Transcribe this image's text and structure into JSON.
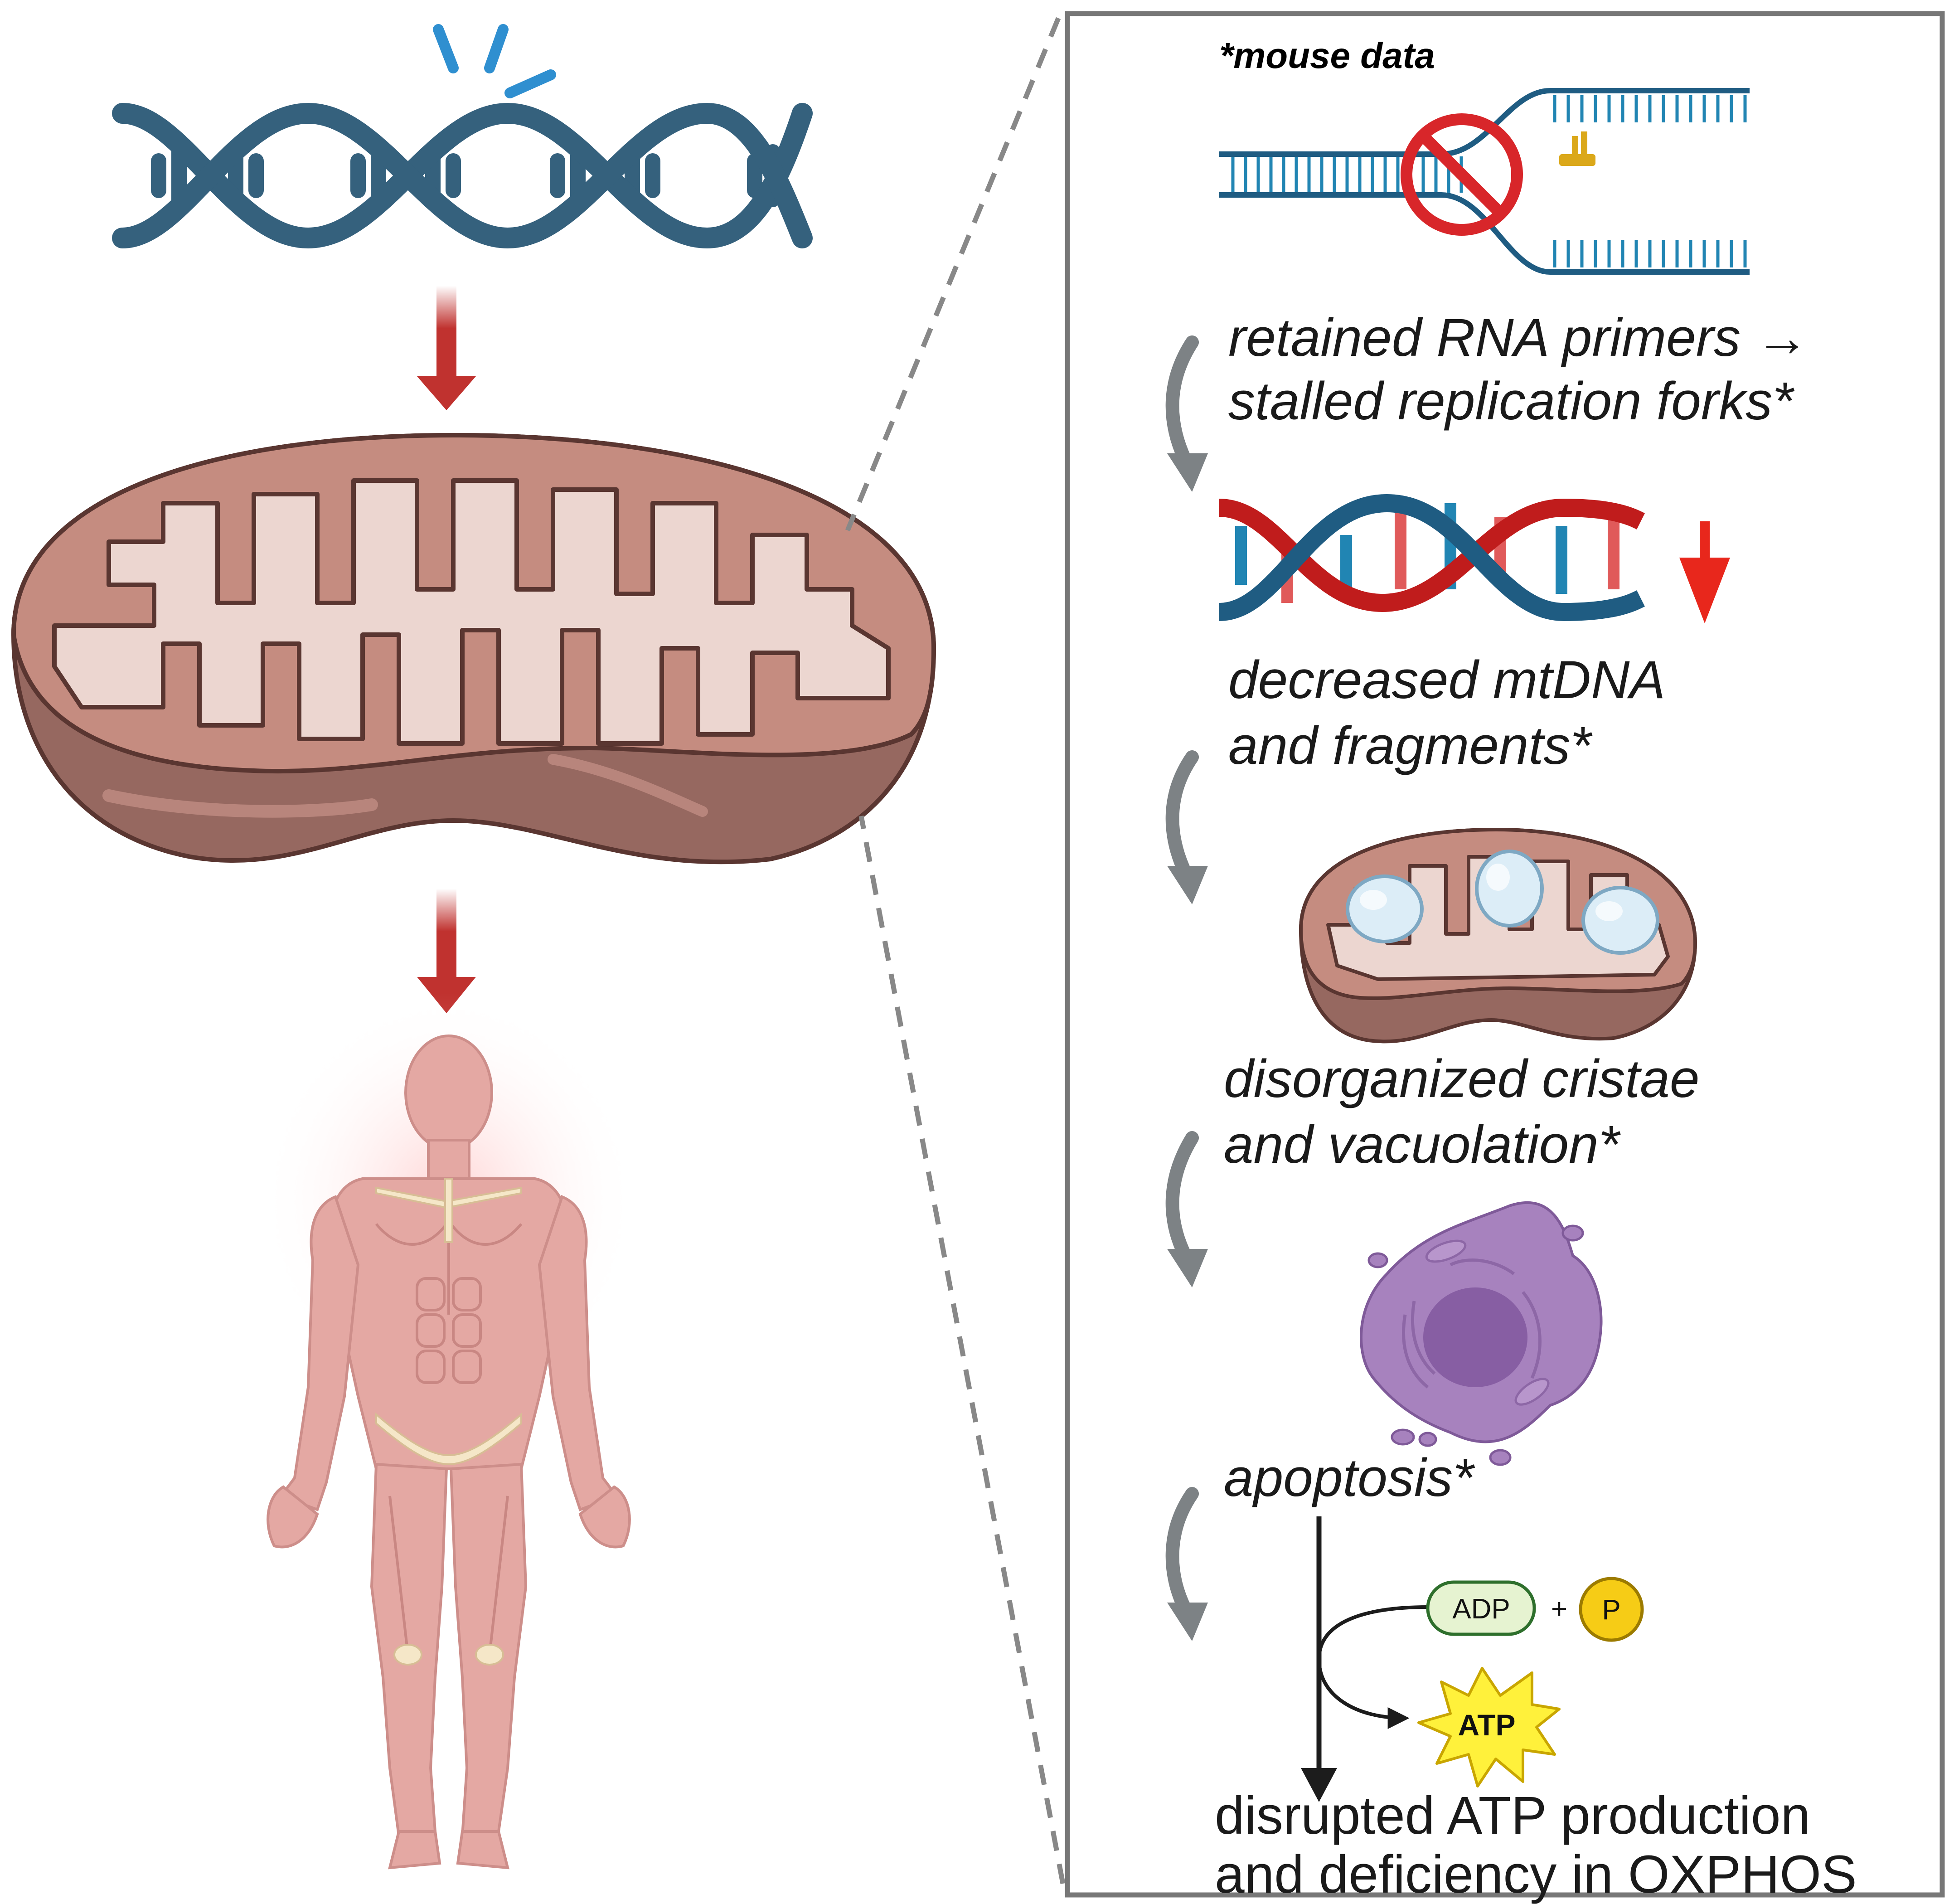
{
  "figure": {
    "mouse_note": "*mouse data",
    "steps": [
      {
        "id": "primers",
        "line1": "retained RNA primers →",
        "line2": "stalled replication forks*"
      },
      {
        "id": "mtdna",
        "line1": "decreased mtDNA",
        "line2": "and fragments*"
      },
      {
        "id": "cristae",
        "line1": "disorganized cristae",
        "line2": "and vacuolation*"
      },
      {
        "id": "apoptosis",
        "line1": "apoptosis*"
      },
      {
        "id": "atp",
        "line1": "disrupted ATP production",
        "line2": "and deficiency in OXPHOS"
      }
    ],
    "reaction": {
      "adp": "ADP",
      "plus": "+",
      "phosphate": "P",
      "atp": "ATP"
    },
    "colors": {
      "dna_strand": "#35617d",
      "mutation_mark": "#2f8fd0",
      "red_arrow": "#c0322f",
      "mito_outer": "#c58c80",
      "mito_inner": "#ecd6d0",
      "mito_bottom": "#966860",
      "panel_border": "#777777",
      "gray_arrow": "#7d8285",
      "cell": "#a782be",
      "nucleus": "#875ea3",
      "atp_star": "#fff13b",
      "phosphate": "#f6cc16",
      "adp_fill": "#e6f3d1"
    }
  }
}
